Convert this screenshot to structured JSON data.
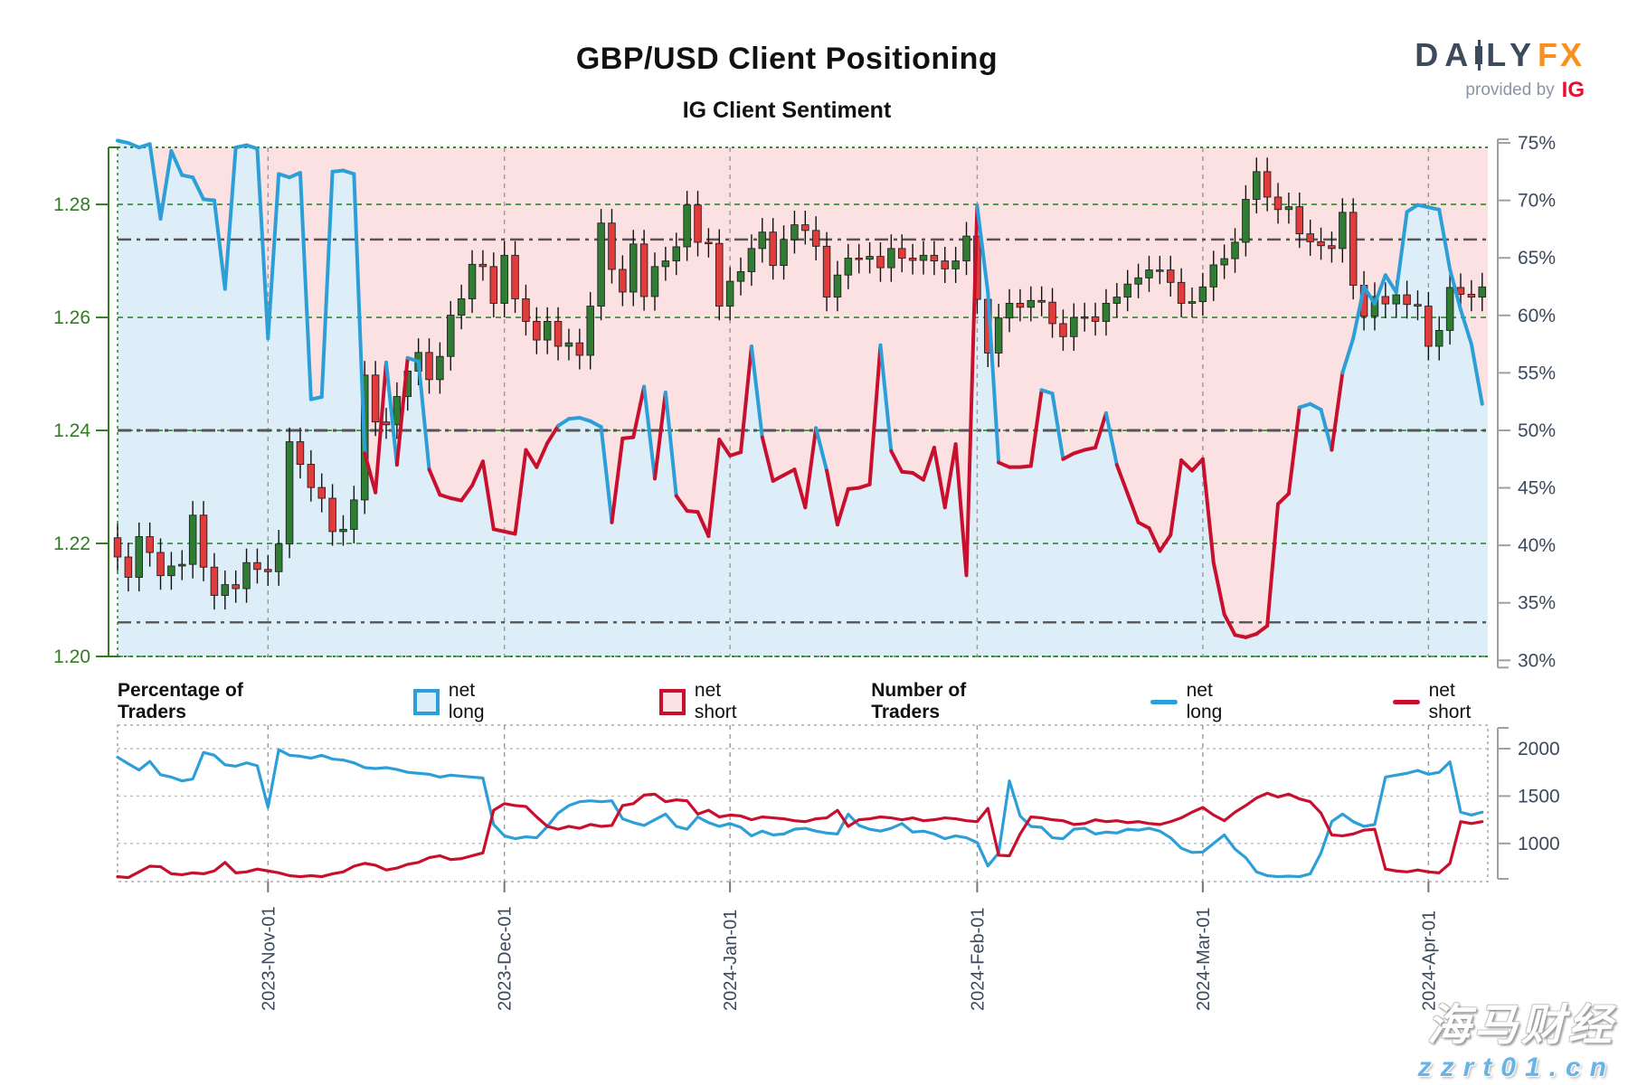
{
  "header": {
    "title": "GBP/USD Client Positioning",
    "subtitle": "IG Client Sentiment"
  },
  "logo": {
    "part1": "DA",
    "part2": "LY",
    "fx": "FX",
    "provided": "provided by",
    "ig": "IG"
  },
  "legend": {
    "pct_header": "Percentage of Traders",
    "num_header": "Number of Traders",
    "net_long": "net long",
    "net_short": "net short"
  },
  "watermark": {
    "line1": "海马财经",
    "line2": "zzrt01.cn"
  },
  "colors": {
    "accent_blue": "#2d9fd8",
    "accent_red": "#c8102e",
    "candle_up": "#2e7d32",
    "candle_down": "#e23b3b",
    "wick": "#111111",
    "bg_pink": "#fbe1e1",
    "bg_blue": "#ddeef8",
    "price_axis_green": "#2e7d1f",
    "pct_axis_slate": "#3b4a5c",
    "grid_green": "#2e8b2e",
    "grid_gray": "#999999",
    "threshold_gray": "#555555"
  },
  "chart_data": [
    {
      "type": "candlestick",
      "title": "GBP/USD daily price with IG client sentiment (% of traders net long)",
      "xlabel": "",
      "ylabel": "",
      "x_ticks": [
        {
          "i": 14,
          "label": "2023-Nov-01"
        },
        {
          "i": 36,
          "label": "2023-Dec-01"
        },
        {
          "i": 57,
          "label": "2024-Jan-01"
        },
        {
          "i": 80,
          "label": "2024-Feb-01"
        },
        {
          "i": 101,
          "label": "2024-Mar-01"
        },
        {
          "i": 122,
          "label": "2024-Apr-01"
        }
      ],
      "price_ticks": [
        1.2,
        1.22,
        1.24,
        1.26,
        1.28
      ],
      "price_range": [
        1.2,
        1.2901
      ],
      "pct_ticks": [
        30,
        35,
        40,
        45,
        50,
        55,
        60,
        65,
        70,
        75
      ],
      "pct_range": [
        30.34,
        74.61
      ],
      "sentiment_thresholds": [
        66.6,
        50,
        33.3
      ],
      "candles": {
        "wick": 0.0025,
        "first_open": 1.221,
        "closes": [
          1.2176,
          1.214,
          1.2212,
          1.2184,
          1.2143,
          1.216,
          1.2163,
          1.225,
          1.2158,
          1.2108,
          1.2127,
          1.212,
          1.2166,
          1.2154,
          1.215,
          1.2199,
          1.238,
          1.234,
          1.2299,
          1.228,
          1.2221,
          1.2225,
          1.2277,
          1.2498,
          1.2415,
          1.241,
          1.246,
          1.2505,
          1.2538,
          1.249,
          1.2531,
          1.2604,
          1.2633,
          1.2694,
          1.269,
          1.2625,
          1.271,
          1.2633,
          1.2593,
          1.256,
          1.2593,
          1.2549,
          1.2555,
          1.2533,
          1.262,
          1.2767,
          1.2685,
          1.2645,
          1.273,
          1.2637,
          1.269,
          1.27,
          1.2725,
          1.2799,
          1.2733,
          1.2731,
          1.262,
          1.2664,
          1.2681,
          1.2722,
          1.2751,
          1.2692,
          1.2738,
          1.2764,
          1.2754,
          1.2726,
          1.2636,
          1.2675,
          1.2705,
          1.2703,
          1.2708,
          1.2688,
          1.2722,
          1.2705,
          1.2701,
          1.271,
          1.27,
          1.2686,
          1.27,
          1.2744,
          1.2632,
          1.2537,
          1.2599,
          1.2625,
          1.2618,
          1.263,
          1.2627,
          1.2589,
          1.2566,
          1.26,
          1.2601,
          1.2593,
          1.2625,
          1.2636,
          1.2659,
          1.267,
          1.2684,
          1.2684,
          1.2662,
          1.2625,
          1.2628,
          1.2654,
          1.2693,
          1.2704,
          1.2733,
          1.2809,
          1.2858,
          1.2813,
          1.2791,
          1.2796,
          1.2748,
          1.2734,
          1.2727,
          1.2722,
          1.2786,
          1.2657,
          1.2602,
          1.2637,
          1.2624,
          1.264,
          1.2623,
          1.262,
          1.2549,
          1.2577,
          1.2653,
          1.2641,
          1.2636,
          1.2654
        ]
      },
      "net_long_pct": [
        75.2,
        75.0,
        74.6,
        74.9,
        68.4,
        74.3,
        72.2,
        72.0,
        70.1,
        70.0,
        62.3,
        74.6,
        74.8,
        74.5,
        58.0,
        72.3,
        72.0,
        72.4,
        52.7,
        52.9,
        72.5,
        72.6,
        72.3,
        48.0,
        44.6,
        55.9,
        47.0,
        56.3,
        56.0,
        46.6,
        44.4,
        44.1,
        43.9,
        45.2,
        47.3,
        41.4,
        41.2,
        41.0,
        48.3,
        46.8,
        48.9,
        50.4,
        51.0,
        51.1,
        50.8,
        50.3,
        42.0,
        49.3,
        49.4,
        53.8,
        45.8,
        53.3,
        44.3,
        43.0,
        42.9,
        40.8,
        49.2,
        47.8,
        48.1,
        57.3,
        49.4,
        45.6,
        46.1,
        46.6,
        43.3,
        50.2,
        46.5,
        41.8,
        44.9,
        45.0,
        45.3,
        57.4,
        48.2,
        46.4,
        46.3,
        45.7,
        48.5,
        43.3,
        48.8,
        37.4,
        69.5,
        62.0,
        47.2,
        46.8,
        46.8,
        46.9,
        53.5,
        53.2,
        47.5,
        48.0,
        48.3,
        48.5,
        51.5,
        47.0,
        44.5,
        42.0,
        41.5,
        39.5,
        40.9,
        47.4,
        46.5,
        47.5,
        38.5,
        34.0,
        32.2,
        32.0,
        32.3,
        33.0,
        43.6,
        44.5,
        52.0,
        52.3,
        51.8,
        48.3,
        55.0,
        58.0,
        62.5,
        61.0,
        63.5,
        62.0,
        69.0,
        69.6,
        69.4,
        69.2,
        64.0,
        60.5,
        57.5,
        52.3
      ]
    },
    {
      "type": "line",
      "title": "Number of traders",
      "y_ticks": [
        1000,
        1500,
        2000
      ],
      "y_range": [
        598,
        2248
      ],
      "series": [
        {
          "name": "net long",
          "color": "#2d9fd8",
          "values": [
            1910,
            1840,
            1775,
            1865,
            1725,
            1700,
            1660,
            1680,
            1960,
            1930,
            1830,
            1815,
            1850,
            1820,
            1380,
            1990,
            1930,
            1920,
            1900,
            1930,
            1890,
            1880,
            1850,
            1800,
            1790,
            1800,
            1780,
            1750,
            1740,
            1730,
            1700,
            1720,
            1710,
            1700,
            1690,
            1200,
            1080,
            1050,
            1070,
            1060,
            1180,
            1320,
            1400,
            1440,
            1450,
            1440,
            1450,
            1260,
            1220,
            1190,
            1250,
            1310,
            1180,
            1150,
            1280,
            1220,
            1180,
            1210,
            1170,
            1080,
            1130,
            1090,
            1100,
            1150,
            1160,
            1130,
            1110,
            1100,
            1310,
            1190,
            1150,
            1130,
            1160,
            1210,
            1120,
            1130,
            1100,
            1050,
            1080,
            1060,
            1010,
            763,
            900,
            1660,
            1290,
            1180,
            1170,
            1060,
            1050,
            1150,
            1160,
            1100,
            1120,
            1110,
            1150,
            1140,
            1160,
            1130,
            1060,
            950,
            905,
            910,
            1000,
            1090,
            940,
            850,
            700,
            660,
            650,
            655,
            650,
            680,
            900,
            1230,
            1310,
            1230,
            1180,
            1200,
            1700,
            1720,
            1740,
            1770,
            1730,
            1750,
            1860,
            1330,
            1300,
            1330
          ]
        },
        {
          "name": "net short",
          "color": "#c8102e",
          "values": [
            650,
            640,
            700,
            760,
            755,
            680,
            670,
            690,
            680,
            710,
            800,
            690,
            700,
            730,
            710,
            690,
            660,
            650,
            660,
            650,
            680,
            700,
            760,
            790,
            770,
            720,
            740,
            780,
            800,
            850,
            870,
            830,
            840,
            870,
            900,
            1350,
            1420,
            1400,
            1390,
            1280,
            1180,
            1150,
            1180,
            1160,
            1200,
            1180,
            1190,
            1400,
            1420,
            1510,
            1520,
            1440,
            1460,
            1450,
            1310,
            1350,
            1280,
            1300,
            1290,
            1250,
            1280,
            1270,
            1260,
            1240,
            1230,
            1260,
            1270,
            1350,
            1180,
            1250,
            1260,
            1280,
            1270,
            1250,
            1270,
            1240,
            1250,
            1270,
            1260,
            1240,
            1230,
            1370,
            875,
            870,
            1100,
            1280,
            1270,
            1250,
            1240,
            1200,
            1210,
            1250,
            1230,
            1240,
            1220,
            1230,
            1210,
            1200,
            1230,
            1270,
            1330,
            1380,
            1300,
            1240,
            1330,
            1400,
            1480,
            1530,
            1490,
            1520,
            1470,
            1440,
            1320,
            1090,
            1080,
            1100,
            1140,
            1150,
            730,
            710,
            700,
            720,
            700,
            690,
            790,
            1230,
            1210,
            1230
          ]
        }
      ]
    }
  ]
}
